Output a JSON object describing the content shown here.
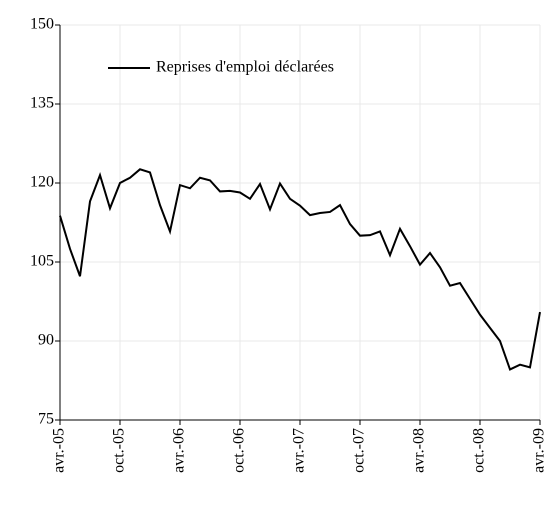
{
  "chart_data": {
    "type": "line",
    "categories": [
      "avr.-05",
      null,
      null,
      null,
      null,
      null,
      "oct.-05",
      null,
      null,
      null,
      null,
      null,
      "avr.-06",
      null,
      null,
      null,
      null,
      null,
      "oct.-06",
      null,
      null,
      null,
      null,
      null,
      "avr.-07",
      null,
      null,
      null,
      null,
      null,
      "oct.-07",
      null,
      null,
      null,
      null,
      null,
      "avr.-08",
      null,
      null,
      null,
      null,
      null,
      "oct.-08",
      null,
      null,
      null,
      null,
      null,
      "avr.-09"
    ],
    "series": [
      {
        "name": "Reprises d'emploi déclarées",
        "color": "#000000",
        "values": [
          113.8,
          107.5,
          102.3,
          116.5,
          121.5,
          115.2,
          120.0,
          121.0,
          122.6,
          122.0,
          115.8,
          110.8,
          119.6,
          119.0,
          121.0,
          120.5,
          118.4,
          118.5,
          118.2,
          117.0,
          119.8,
          115.0,
          119.9,
          117.0,
          115.7,
          113.9,
          114.3,
          114.5,
          115.8,
          112.2,
          110.0,
          110.1,
          110.8,
          106.3,
          111.3,
          108.0,
          104.5,
          106.7,
          104.0,
          100.5,
          101.0,
          98.0,
          95.0,
          92.5,
          90.0,
          84.6,
          85.5,
          85.0,
          95.5
        ]
      }
    ],
    "ylim": [
      75,
      150
    ],
    "yticks": [
      75,
      90,
      105,
      120,
      135,
      150
    ],
    "grid": true,
    "legend": "top"
  }
}
